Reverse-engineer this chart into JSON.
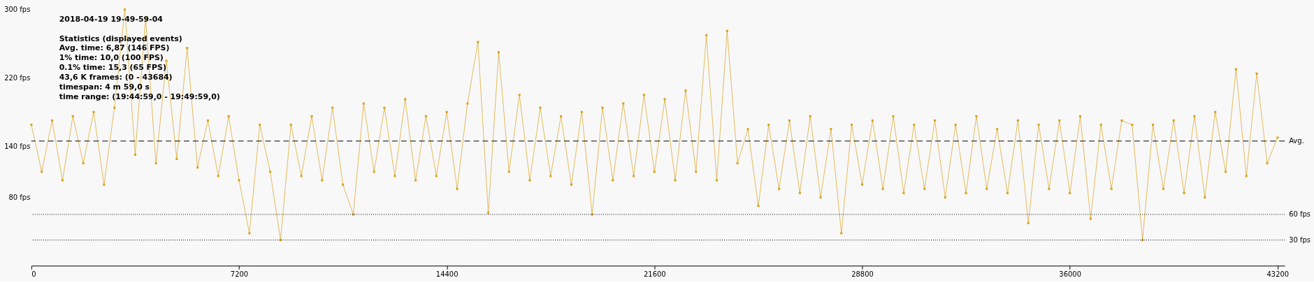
{
  "chart_data": {
    "type": "line",
    "title": "2018-04-19 19-49-59-04",
    "annotations": [
      "Statistics (displayed events)",
      "Avg. time:      6,87      (146 FPS)",
      "1% time:        10,0      (100 FPS)",
      "0.1% time:      15,3      (65 FPS)",
      "43,6 K frames:             (0 - 43684)",
      "timespan:       4 m 59,0 s",
      "time range:     (19:44:59,0 - 19:49:59,0)"
    ],
    "x": [
      0,
      360,
      720,
      1080,
      1440,
      1800,
      2160,
      2520,
      2880,
      3240,
      3600,
      3960,
      4320,
      4680,
      5040,
      5400,
      5760,
      6120,
      6480,
      6840,
      7200,
      7560,
      7920,
      8280,
      8640,
      9000,
      9360,
      9720,
      10080,
      10440,
      10800,
      11160,
      11520,
      11880,
      12240,
      12600,
      12960,
      13320,
      13680,
      14040,
      14400,
      14760,
      15120,
      15480,
      15840,
      16200,
      16560,
      16920,
      17280,
      17640,
      18000,
      18360,
      18720,
      19080,
      19440,
      19800,
      20160,
      20520,
      20880,
      21240,
      21600,
      21960,
      22320,
      22680,
      23040,
      23400,
      23760,
      24120,
      24480,
      24840,
      25200,
      25560,
      25920,
      26280,
      26640,
      27000,
      27360,
      27720,
      28080,
      28440,
      28800,
      29160,
      29520,
      29880,
      30240,
      30600,
      30960,
      31320,
      31680,
      32040,
      32400,
      32760,
      33120,
      33480,
      33840,
      34200,
      34560,
      34920,
      35280,
      35640,
      36000,
      36360,
      36720,
      37080,
      37440,
      37800,
      38160,
      38520,
      38880,
      39240,
      39600,
      39960,
      40320,
      40680,
      41040,
      41400,
      41760,
      42120,
      42480,
      42840,
      43200
    ],
    "series": [
      {
        "color": "#daa520",
        "values": [
          165,
          110,
          170,
          100,
          175,
          120,
          180,
          95,
          185,
          300,
          130,
          290,
          120,
          240,
          125,
          255,
          115,
          170,
          105,
          175,
          100,
          38,
          165,
          110,
          30,
          165,
          105,
          175,
          100,
          185,
          95,
          60,
          190,
          110,
          185,
          105,
          195,
          100,
          175,
          105,
          180,
          90,
          190,
          262,
          62,
          250,
          110,
          200,
          100,
          185,
          105,
          175,
          95,
          180,
          60,
          185,
          100,
          190,
          105,
          200,
          110,
          195,
          100,
          205,
          110,
          270,
          100,
          275,
          120,
          160,
          70,
          165,
          90,
          170,
          85,
          175,
          80,
          160,
          38,
          165,
          95,
          170,
          90,
          175,
          85,
          165,
          90,
          170,
          80,
          165,
          85,
          175,
          90,
          160,
          85,
          170,
          50,
          165,
          90,
          170,
          85,
          175,
          55,
          165,
          90,
          170,
          165,
          30,
          165,
          90,
          170,
          85,
          175,
          80,
          180,
          110,
          230,
          105,
          225,
          120,
          150
        ]
      }
    ],
    "xlim": [
      0,
      43450
    ],
    "xticks": [
      0,
      7200,
      14400,
      21600,
      28800,
      36000,
      43200
    ],
    "ylim": [
      0,
      300
    ],
    "yticks": [
      {
        "value": 80,
        "label": "80 fps"
      },
      {
        "value": 140,
        "label": "140 fps"
      },
      {
        "value": 220,
        "label": "220 fps"
      },
      {
        "value": 300,
        "label": "300 fps"
      }
    ],
    "ref_lines": [
      {
        "axis": "y",
        "value": 146,
        "label": "Avg.",
        "color": "#000000",
        "line_style": "dashed"
      },
      {
        "axis": "y",
        "value": 60,
        "label": "60 fps",
        "color": "#000000",
        "line_style": "dotted"
      },
      {
        "axis": "y",
        "value": 30,
        "label": "30 fps",
        "color": "#000000",
        "line_style": "dotted"
      }
    ],
    "grid": false,
    "marker": "square",
    "line_style": "solid"
  }
}
